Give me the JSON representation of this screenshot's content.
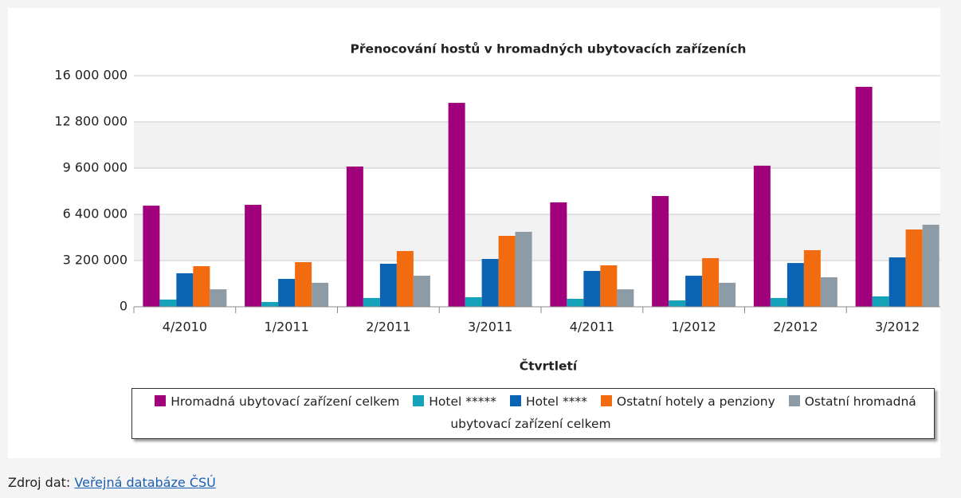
{
  "chart_data": {
    "type": "bar",
    "title": "Přenocování hostů v hromadných ubytovacích zařízeních",
    "x_label": "Čtvrtletí",
    "categories": [
      "4/2010",
      "1/2011",
      "2/2011",
      "3/2011",
      "4/2011",
      "1/2012",
      "2/2012",
      "3/2012"
    ],
    "series": [
      {
        "name": "Hromadná ubytovací zařízení celkem",
        "color": "#a0007c",
        "values": [
          7000000,
          7060000,
          9710000,
          14120000,
          7230000,
          7670000,
          9770000,
          15230000
        ]
      },
      {
        "name": "Hotel *****",
        "color": "#14a3b8",
        "values": [
          500000,
          330000,
          610000,
          660000,
          550000,
          440000,
          610000,
          720000
        ]
      },
      {
        "name": "Hotel ****",
        "color": "#0a63b3",
        "values": [
          2320000,
          1930000,
          2980000,
          3310000,
          2480000,
          2150000,
          3030000,
          3420000
        ]
      },
      {
        "name": "Ostatní hotely a penziony",
        "color": "#f26b0f",
        "values": [
          2810000,
          3090000,
          3860000,
          4910000,
          2870000,
          3370000,
          3920000,
          5350000
        ]
      },
      {
        "name": "Ostatní hromadná ubytovací zařízení celkem",
        "color": "#8c9ba6",
        "values": [
          1210000,
          1660000,
          2150000,
          5190000,
          1210000,
          1660000,
          2040000,
          5680000
        ]
      }
    ],
    "ylim": [
      0,
      16000000
    ],
    "yticks": [
      0,
      {
        "value": 3200000,
        "label": "3 200 000"
      },
      {
        "value": 6400000,
        "label": "6 400 000"
      },
      {
        "value": 9600000,
        "label": "9 600 000"
      },
      {
        "value": 12800000,
        "label": "12 800 000"
      },
      {
        "value": 16000000,
        "label": "16 000 000"
      }
    ],
    "grid": true,
    "alternate_bands": true,
    "legend": "bottom"
  },
  "source": {
    "label": "Zdroj dat:",
    "link": "Veřejná databáze ČSÚ"
  }
}
